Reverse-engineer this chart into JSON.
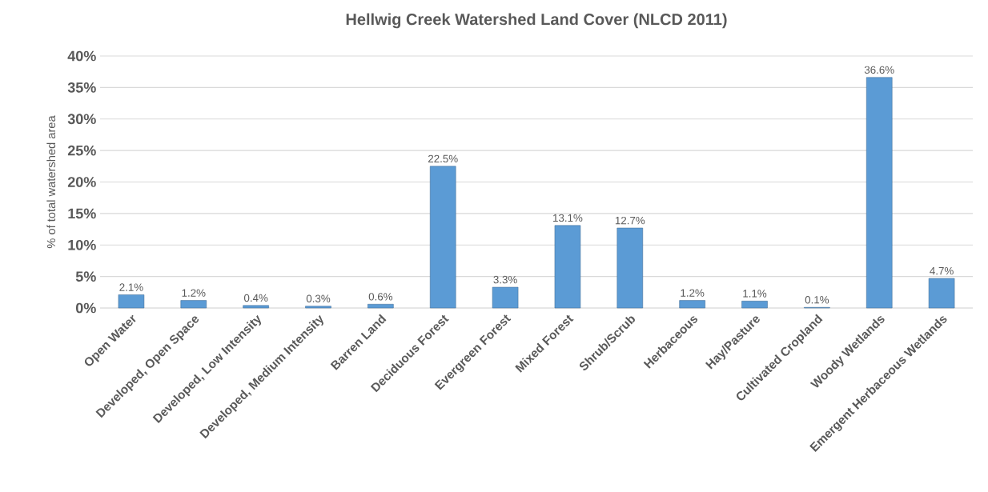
{
  "chart_data": {
    "type": "bar",
    "title": "Hellwig Creek Watershed Land Cover (NLCD 2011)",
    "ylabel": "% of total watershed area",
    "categories": [
      "Open Water",
      "Developed, Open Space",
      "Developed, Low Intensity",
      "Developed, Medium Intensity",
      "Barren Land",
      "Deciduous Forest",
      "Evergreen Forest",
      "Mixed Forest",
      "Shrub/Scrub",
      "Herbaceous",
      "Hay/Pasture",
      "Cultivated Cropland",
      "Woody Wetlands",
      "Emergent Herbaceous Wetlands"
    ],
    "values": [
      2.1,
      1.2,
      0.4,
      0.3,
      0.6,
      22.5,
      3.3,
      13.1,
      12.7,
      1.2,
      1.1,
      0.1,
      36.6,
      4.7
    ],
    "value_labels": [
      "2.1%",
      "1.2%",
      "0.4%",
      "0.3%",
      "0.6%",
      "22.5%",
      "3.3%",
      "13.1%",
      "12.7%",
      "1.2%",
      "1.1%",
      "0.1%",
      "36.6%",
      "4.7%"
    ],
    "color": "#5b9bd5",
    "ylim": [
      0,
      40
    ],
    "yticks": [
      {
        "value": 0,
        "label": "0%"
      },
      {
        "value": 5,
        "label": "5%"
      },
      {
        "value": 10,
        "label": "10%"
      },
      {
        "value": 15,
        "label": "15%"
      },
      {
        "value": 20,
        "label": "20%"
      },
      {
        "value": 25,
        "label": "25%"
      },
      {
        "value": 30,
        "label": "30%"
      },
      {
        "value": 35,
        "label": "35%"
      },
      {
        "value": 40,
        "label": "40%"
      }
    ],
    "grid": "y"
  }
}
